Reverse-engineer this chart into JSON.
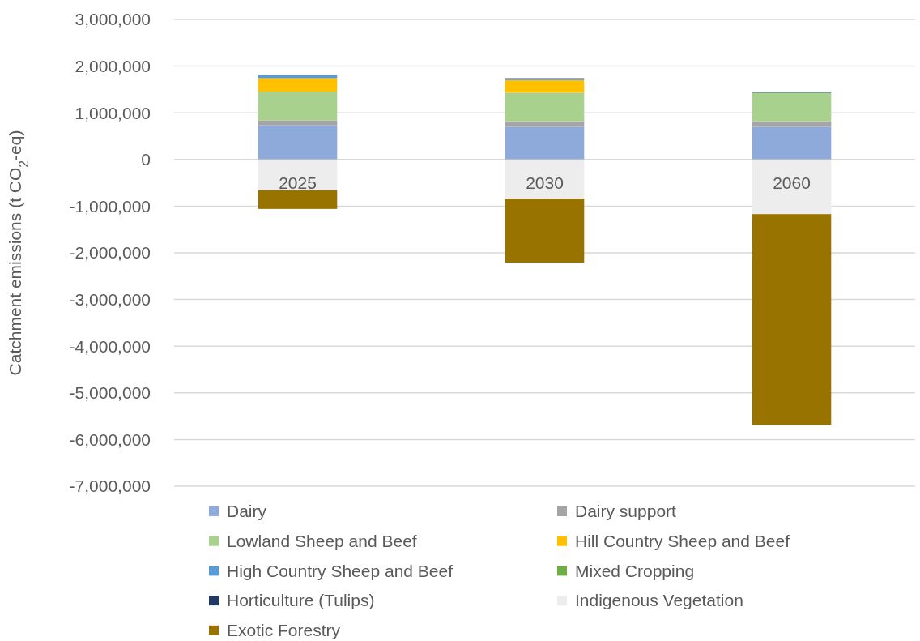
{
  "chart_data": {
    "type": "bar",
    "stacked": true,
    "ylabel": "Catchment emissions (t CO$_{2}$-eq)",
    "categories": [
      "2025",
      "2030",
      "2060"
    ],
    "ylim": [
      -7000000,
      3000000
    ],
    "yticks": [
      {
        "value": -7000000,
        "label": "-7,000,000"
      },
      {
        "value": -6000000,
        "label": "-6,000,000"
      },
      {
        "value": -5000000,
        "label": "-5,000,000"
      },
      {
        "value": -4000000,
        "label": "-4,000,000"
      },
      {
        "value": -3000000,
        "label": "-3,000,000"
      },
      {
        "value": -2000000,
        "label": "-2,000,000"
      },
      {
        "value": -1000000,
        "label": "-1,000,000"
      },
      {
        "value": 0,
        "label": "0"
      },
      {
        "value": 1000000,
        "label": "1,000,000"
      },
      {
        "value": 2000000,
        "label": "2,000,000"
      },
      {
        "value": 3000000,
        "label": "3,000,000"
      }
    ],
    "grid": "y",
    "legend": "bottom",
    "series": [
      {
        "name": "Dairy",
        "color": "#8eaadb",
        "values": [
          730000,
          700000,
          700000
        ]
      },
      {
        "name": "Dairy support",
        "color": "#a5a5a5",
        "values": [
          110000,
          120000,
          120000
        ]
      },
      {
        "name": "Lowland Sheep and Beef",
        "color": "#a9d18e",
        "values": [
          610000,
          610000,
          610000
        ]
      },
      {
        "name": "Hill Country Sheep and Beef",
        "color": "#ffc000",
        "values": [
          290000,
          270000,
          0
        ]
      },
      {
        "name": "High Country Sheep and Beef",
        "color": "#5b9bd5",
        "values": [
          70000,
          20000,
          0
        ]
      },
      {
        "name": "Mixed Cropping",
        "color": "#70ad47",
        "values": [
          0,
          0,
          0
        ]
      },
      {
        "name": "Horticulture (Tulips)",
        "color": "#203864",
        "values": [
          0,
          20000,
          20000
        ]
      },
      {
        "name": "Indigenous Vegetation",
        "color": "#ededed",
        "values": [
          -660000,
          -840000,
          -1170000
        ]
      },
      {
        "name": "Exotic Forestry",
        "color": "#997300",
        "values": [
          -400000,
          -1370000,
          -4520000
        ]
      }
    ]
  }
}
